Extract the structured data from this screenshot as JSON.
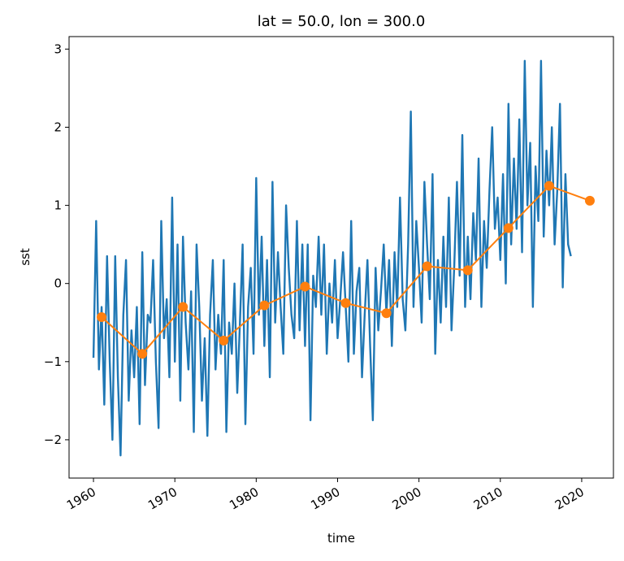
{
  "chart_data": {
    "type": "line",
    "title": "lat = 50.0, lon = 300.0",
    "x_label": "time",
    "y_label": "sst",
    "xlim": [
      1957.0,
      2023.9
    ],
    "ylim": [
      -2.49,
      3.16
    ],
    "xticks": [
      1960,
      1970,
      1980,
      1990,
      2000,
      2010,
      2020
    ],
    "yticks": [
      {
        "value": -2,
        "label": "−2"
      },
      {
        "value": -1,
        "label": "−1"
      },
      0,
      1,
      2,
      3
    ],
    "series": [
      {
        "color": "#1f77b4",
        "markers": false,
        "x": [
          1960,
          1960.33,
          1960.67,
          1961,
          1961.33,
          1961.67,
          1962,
          1962.33,
          1962.67,
          1963,
          1963.33,
          1963.67,
          1964,
          1964.33,
          1964.67,
          1965,
          1965.33,
          1965.67,
          1966,
          1966.33,
          1966.67,
          1967,
          1967.33,
          1967.67,
          1968,
          1968.33,
          1968.67,
          1969,
          1969.33,
          1969.67,
          1970,
          1970.33,
          1970.67,
          1971,
          1971.33,
          1971.67,
          1972,
          1972.33,
          1972.67,
          1973,
          1973.33,
          1973.67,
          1974,
          1974.33,
          1974.67,
          1975,
          1975.33,
          1975.67,
          1976,
          1976.33,
          1976.67,
          1977,
          1977.33,
          1977.67,
          1978,
          1978.33,
          1978.67,
          1979,
          1979.33,
          1979.67,
          1980,
          1980.33,
          1980.67,
          1981,
          1981.33,
          1981.67,
          1982,
          1982.33,
          1982.67,
          1983,
          1983.33,
          1983.67,
          1984,
          1984.33,
          1984.67,
          1985,
          1985.33,
          1985.67,
          1986,
          1986.33,
          1986.67,
          1987,
          1987.33,
          1987.67,
          1988,
          1988.33,
          1988.67,
          1989,
          1989.33,
          1989.67,
          1990,
          1990.33,
          1990.67,
          1991,
          1991.33,
          1991.67,
          1992,
          1992.33,
          1992.67,
          1993,
          1993.33,
          1993.67,
          1994,
          1994.33,
          1994.67,
          1995,
          1995.33,
          1995.67,
          1996,
          1996.33,
          1996.67,
          1997,
          1997.33,
          1997.67,
          1998,
          1998.33,
          1998.67,
          1999,
          1999.33,
          1999.67,
          2000,
          2000.33,
          2000.67,
          2001,
          2001.33,
          2001.67,
          2002,
          2002.33,
          2002.67,
          2003,
          2003.33,
          2003.67,
          2004,
          2004.33,
          2004.67,
          2005,
          2005.33,
          2005.67,
          2006,
          2006.33,
          2006.67,
          2007,
          2007.33,
          2007.67,
          2008,
          2008.33,
          2008.67,
          2009,
          2009.33,
          2009.67,
          2010,
          2010.33,
          2010.67,
          2011,
          2011.33,
          2011.67,
          2012,
          2012.33,
          2012.67,
          2013,
          2013.33,
          2013.67,
          2014,
          2014.33,
          2014.67,
          2015,
          2015.33,
          2015.67,
          2016,
          2016.33,
          2016.67,
          2017,
          2017.33,
          2017.67,
          2018,
          2018.33,
          2018.67
        ],
        "values": [
          -0.95,
          0.8,
          -1.1,
          -0.3,
          -1.55,
          0.35,
          -1.0,
          -2.0,
          0.35,
          -1.2,
          -2.2,
          -0.4,
          0.3,
          -1.5,
          -0.6,
          -1.2,
          -0.3,
          -1.8,
          0.4,
          -1.3,
          -0.4,
          -0.5,
          0.3,
          -1.0,
          -1.85,
          0.8,
          -0.7,
          -0.2,
          -1.2,
          1.1,
          -1.0,
          0.5,
          -1.5,
          0.6,
          -0.5,
          -1.1,
          -0.1,
          -1.9,
          0.5,
          -0.3,
          -1.5,
          -0.7,
          -1.95,
          -0.4,
          0.3,
          -1.1,
          -0.4,
          -0.9,
          0.3,
          -1.9,
          -0.5,
          -0.9,
          0.0,
          -1.4,
          -0.5,
          0.5,
          -1.8,
          -0.3,
          0.2,
          -0.9,
          1.35,
          -0.4,
          0.6,
          -0.8,
          0.3,
          -1.2,
          1.3,
          -0.5,
          0.4,
          -0.3,
          -0.9,
          1.0,
          0.2,
          -0.4,
          -0.7,
          0.8,
          -0.6,
          0.5,
          -0.8,
          0.5,
          -1.75,
          0.1,
          -0.3,
          0.6,
          -0.4,
          0.5,
          -0.9,
          0.0,
          -0.5,
          0.3,
          -0.7,
          -0.2,
          0.4,
          -0.3,
          -1.0,
          0.8,
          -0.9,
          -0.1,
          0.2,
          -1.2,
          -0.4,
          0.3,
          -0.8,
          -1.75,
          0.2,
          -0.6,
          -0.1,
          0.5,
          -0.4,
          0.3,
          -0.8,
          0.4,
          -0.3,
          1.1,
          -0.2,
          -0.6,
          0.5,
          2.2,
          -0.3,
          0.8,
          0.2,
          -0.5,
          1.3,
          0.5,
          -0.2,
          1.4,
          -0.9,
          0.3,
          -0.5,
          0.6,
          -0.3,
          1.1,
          -0.6,
          0.2,
          1.3,
          0.1,
          1.9,
          -0.3,
          0.6,
          -0.2,
          0.9,
          0.3,
          1.6,
          -0.3,
          0.8,
          0.2,
          1.2,
          2.0,
          0.7,
          1.1,
          0.3,
          1.4,
          0.0,
          2.3,
          0.5,
          1.6,
          0.7,
          2.1,
          0.4,
          2.85,
          1.0,
          1.8,
          -0.3,
          1.5,
          0.8,
          2.85,
          0.6,
          1.7,
          1.0,
          2.0,
          0.5,
          1.2,
          2.3,
          -0.05,
          1.4,
          0.5,
          0.35
        ]
      },
      {
        "color": "#ff7f0e",
        "markers": true,
        "x": [
          1961,
          1966,
          1971,
          1976,
          1981,
          1986,
          1991,
          1996,
          2001,
          2006,
          2011,
          2016,
          2021
        ],
        "values": [
          -0.43,
          -0.9,
          -0.3,
          -0.73,
          -0.28,
          -0.04,
          -0.25,
          -0.38,
          0.22,
          0.17,
          0.71,
          1.25,
          1.06
        ]
      }
    ]
  }
}
